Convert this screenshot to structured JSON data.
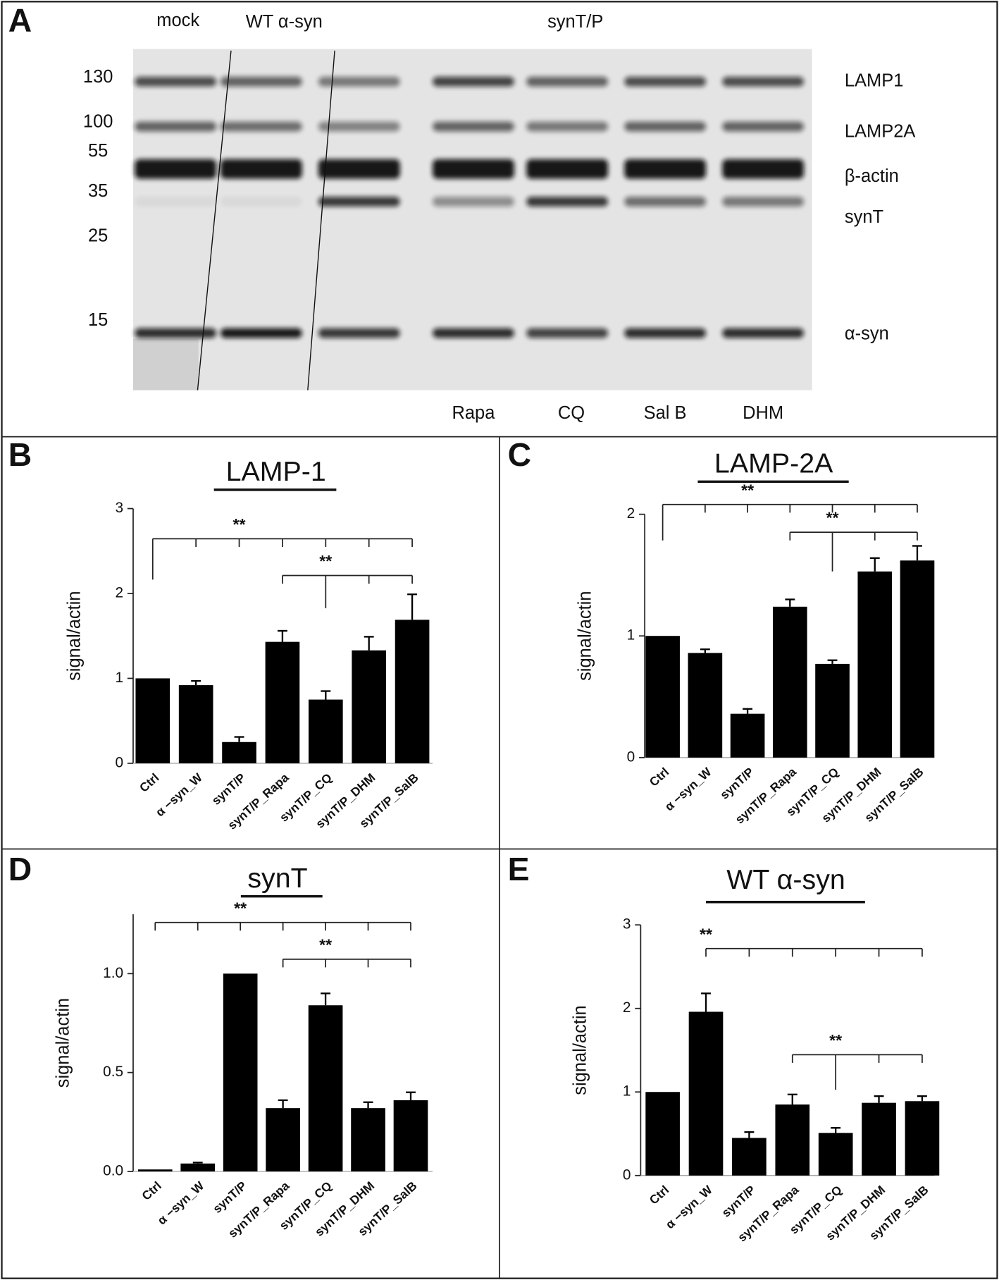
{
  "blot": {
    "panel_label": "A",
    "lanes_top": [
      "mock",
      "WT α-syn",
      "synT/P"
    ],
    "lanes_bottom": [
      "Rapa",
      "CQ",
      "Sal B",
      "DHM"
    ],
    "markers": [
      130,
      100,
      55,
      35,
      25,
      15
    ],
    "bands": [
      "LAMP1",
      "LAMP2A",
      "β-actin",
      "synT",
      "α-syn"
    ]
  },
  "chart_data": [
    {
      "type": "bar",
      "panel_label": "B",
      "title": "LAMP-1",
      "y_label": "signal/actin",
      "categories": [
        "Ctrl",
        "α −syn_W",
        "synT/P",
        "synT/P_Rapa",
        "synT/P_CQ",
        "synT/P_DHM",
        "synT/P_SalB"
      ],
      "values": [
        1.0,
        0.92,
        0.25,
        1.43,
        0.75,
        1.33,
        1.69
      ],
      "errors": [
        null,
        0.05,
        0.06,
        0.13,
        0.1,
        0.16,
        0.3
      ],
      "color": "#000000",
      "ylim": [
        0,
        3
      ],
      "yticks": [
        0,
        1,
        2,
        3
      ],
      "annotations": [
        "**",
        "**"
      ]
    },
    {
      "type": "bar",
      "panel_label": "C",
      "title": "LAMP-2A",
      "y_label": "signal/actin",
      "categories": [
        "Ctrl",
        "α −syn_W",
        "synT/P",
        "synT/P_Rapa",
        "synT/P_CQ",
        "synT/P_DHM",
        "synT/P_SalB"
      ],
      "values": [
        1.0,
        0.86,
        0.36,
        1.24,
        0.77,
        1.53,
        1.62
      ],
      "errors": [
        null,
        0.03,
        0.04,
        0.06,
        0.03,
        0.11,
        0.12
      ],
      "color": "#000000",
      "ylim": [
        0,
        2
      ],
      "yticks": [
        0,
        1,
        2
      ],
      "annotations": [
        "**",
        "**"
      ]
    },
    {
      "type": "bar",
      "panel_label": "D",
      "title": "synT",
      "y_label": "signal/actin",
      "categories": [
        "Ctrl",
        "α −syn_W",
        "synT/P",
        "synT/P_Rapa",
        "synT/P_CQ",
        "synT/P_DHM",
        "synT/P_SalB"
      ],
      "values": [
        0.01,
        0.04,
        1.0,
        0.32,
        0.84,
        0.32,
        0.36
      ],
      "errors": [
        null,
        0.005,
        null,
        0.04,
        0.06,
        0.03,
        0.04
      ],
      "color": "#000000",
      "ylim": [
        0,
        1.3
      ],
      "yticks": [
        {
          "value": 0,
          "label": "0.0"
        },
        0.5,
        {
          "value": 1,
          "label": "1.0"
        }
      ],
      "annotations": [
        "**",
        "**"
      ]
    },
    {
      "type": "bar",
      "panel_label": "E",
      "title": "WT α-syn",
      "y_label": "signal/actin",
      "categories": [
        "Ctrl",
        "α −syn_W",
        "synT/P",
        "synT/P_Rapa",
        "synT/P_CQ",
        "synT/P_DHM",
        "synT/P_SalB"
      ],
      "values": [
        1.0,
        1.96,
        0.45,
        0.85,
        0.51,
        0.87,
        0.89
      ],
      "errors": [
        null,
        0.22,
        0.07,
        0.12,
        0.06,
        0.08,
        0.06
      ],
      "color": "#000000",
      "ylim": [
        0,
        3
      ],
      "yticks": [
        0,
        1,
        2,
        3
      ],
      "annotations": [
        "**",
        "**"
      ]
    }
  ]
}
